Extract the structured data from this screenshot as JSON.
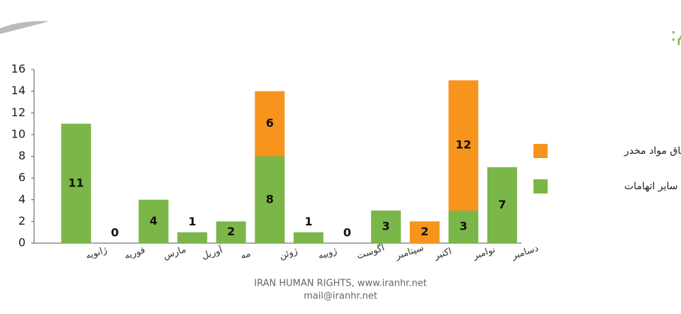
{
  "chart_data": {
    "type": "stacked_bar",
    "title": "تفکیک ماهانه اعدام های ملاعام:",
    "categories": [
      "ژانویه",
      "فوریه",
      "مارس",
      "آوریل",
      "مه",
      "ژوئن",
      "ژوییه",
      "اگوست",
      "سپتامبر",
      "اکتبر",
      "نوامبر",
      "دسامبر"
    ],
    "series": [
      {
        "name": "سایر اتهامات",
        "color": "#7ab648",
        "values": [
          11,
          0,
          4,
          1,
          2,
          8,
          1,
          0,
          3,
          0,
          3,
          7
        ]
      },
      {
        "name": "قاچاق مواد مخدر",
        "color": "#f7941d",
        "values": [
          0,
          0,
          0,
          0,
          0,
          6,
          0,
          0,
          0,
          2,
          12,
          0
        ]
      }
    ],
    "ylim": [
      0,
      16
    ],
    "yticks": [
      0,
      2,
      4,
      6,
      8,
      10,
      12,
      14,
      16
    ],
    "footer": [
      "IRAN HUMAN RIGHTS, www.iranhr.net",
      "mail@iranhr.net"
    ]
  }
}
